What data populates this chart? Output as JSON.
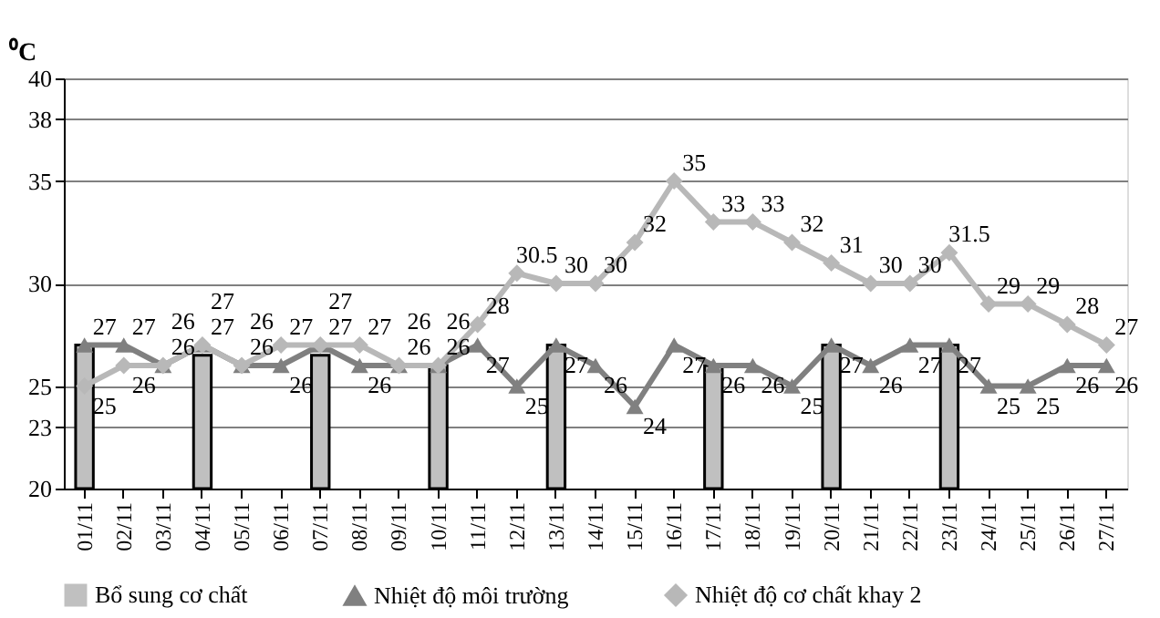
{
  "chart_data": {
    "type": "bar",
    "ylabel": "⁰C",
    "categories": [
      "01/11",
      "02/11",
      "03/11",
      "04/11",
      "05/11",
      "06/11",
      "07/11",
      "08/11",
      "09/11",
      "10/11",
      "11/11",
      "12/11",
      "13/11",
      "14/11",
      "15/11",
      "16/11",
      "17/11",
      "18/11",
      "19/11",
      "20/11",
      "21/11",
      "22/11",
      "23/11",
      "24/11",
      "25/11",
      "26/11",
      "27/11"
    ],
    "series": [
      {
        "name": "Bổ sung cơ chất",
        "color": "#c0c0c0",
        "values": [
          27,
          null,
          null,
          26.5,
          null,
          null,
          26.5,
          null,
          null,
          26,
          null,
          null,
          27,
          null,
          null,
          null,
          26,
          null,
          null,
          27,
          null,
          null,
          27,
          null,
          null,
          null,
          null
        ]
      },
      {
        "name": "Nhiệt độ môi trường",
        "type": "line",
        "marker": "triangle",
        "color": "#808080",
        "values": [
          27,
          27,
          26,
          27,
          26,
          26,
          27,
          26,
          26,
          26,
          27,
          25,
          27,
          26,
          24,
          27,
          26,
          26,
          25,
          27,
          26,
          27,
          27,
          25,
          25,
          26,
          26
        ],
        "value_labels": [
          "27",
          "27",
          "26",
          "27",
          "26",
          "26",
          "27",
          "26",
          "26",
          "26",
          "27",
          "25",
          "27",
          "26",
          "24",
          "27",
          "26",
          "26",
          "25",
          "27",
          "26",
          "27",
          "27",
          "25",
          "25",
          "26",
          "26"
        ]
      },
      {
        "name": "Nhiệt độ cơ chất khay 2",
        "type": "line",
        "marker": "diamond",
        "color": "#b8b8b8",
        "values": [
          25,
          26,
          26,
          27,
          26,
          27,
          27,
          27,
          26,
          26,
          28,
          30.5,
          30,
          30,
          32,
          35,
          33,
          33,
          32,
          31,
          30,
          30,
          31.5,
          29,
          29,
          28,
          27
        ],
        "value_labels": [
          "25",
          "26",
          "26",
          "27",
          "26",
          "27",
          "27",
          "27",
          "26",
          "26",
          "28",
          "30.5",
          "30",
          "30",
          "32",
          "35",
          "33",
          "33",
          "32",
          "31",
          "30",
          "30",
          "31.5",
          "29",
          "29",
          "28",
          "27"
        ]
      }
    ],
    "ylim": [
      20,
      40
    ],
    "yticks": [
      20,
      23,
      25,
      30,
      35,
      38,
      40
    ],
    "grid": "y",
    "legend": "bottom"
  }
}
